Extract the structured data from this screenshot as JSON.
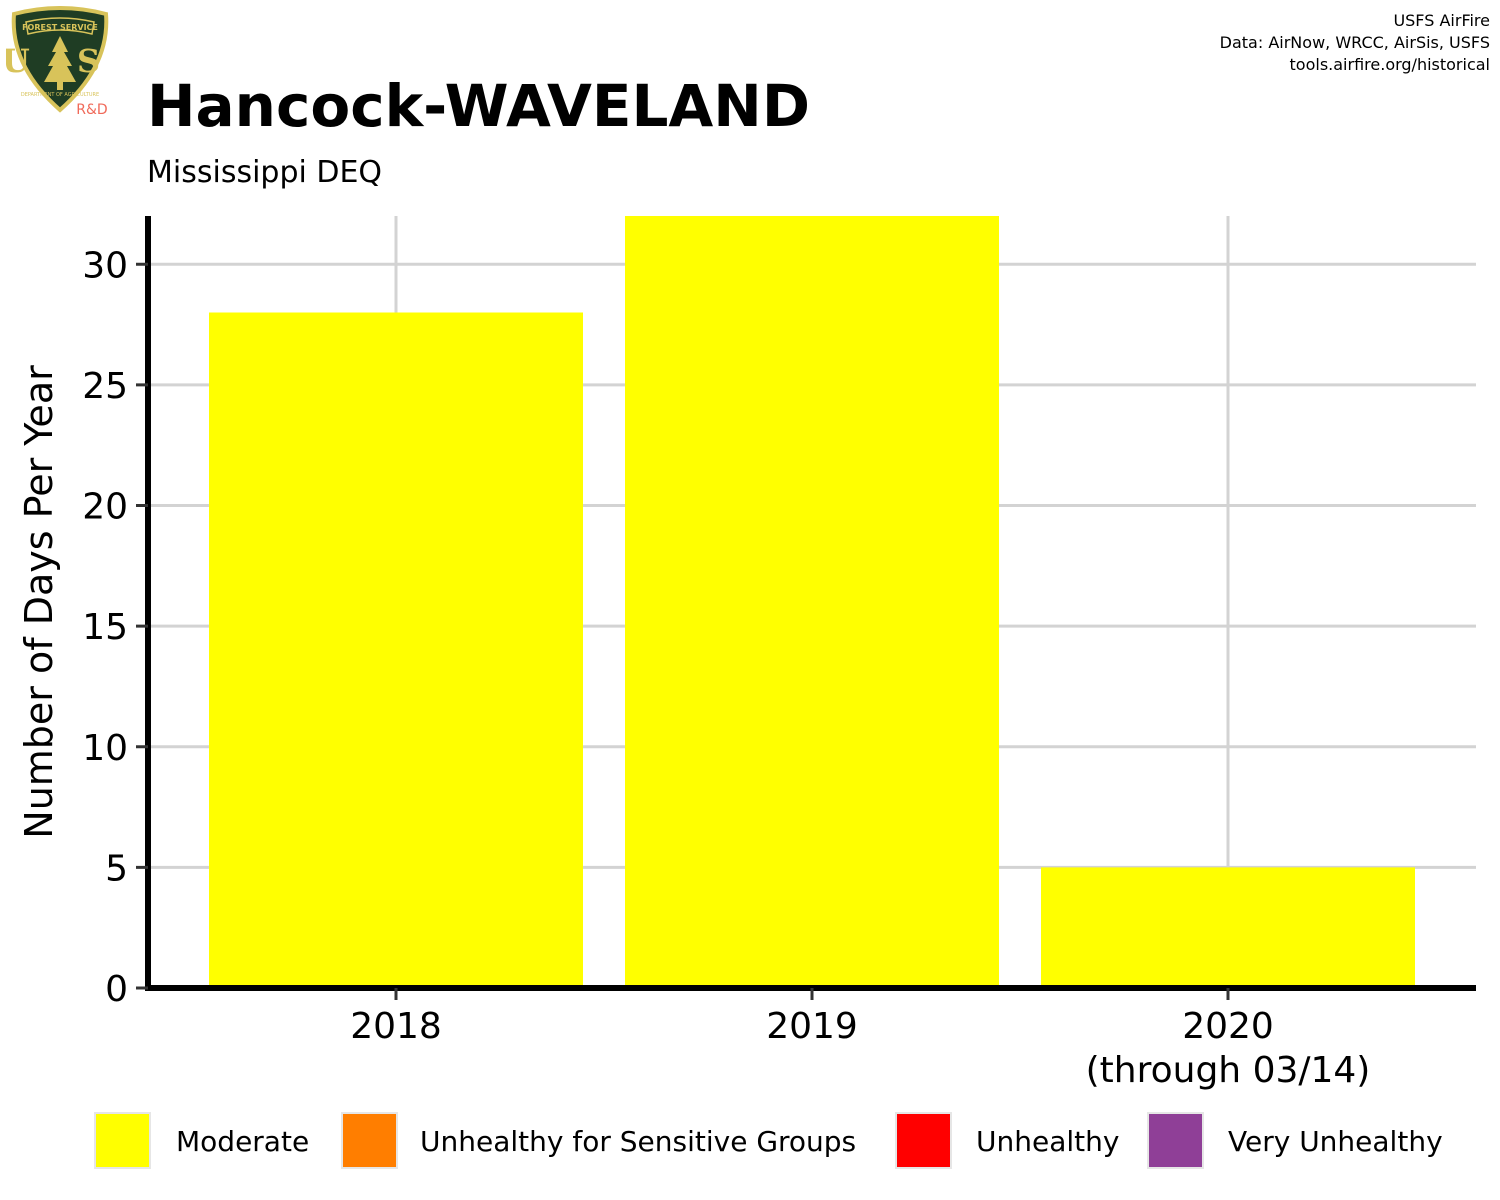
{
  "logo": {
    "top_text": "FOREST SERVICE",
    "bottom_text": "DEPARTMENT OF AGRICULTURE",
    "letters": "U S",
    "badge": "R&D",
    "shield_color": "#1f3d24",
    "trim_color": "#d8c35a",
    "badge_color": "#f06a5a"
  },
  "credits": {
    "line1": "USFS AirFire",
    "line2": "Data: AirNow, WRCC, AirSis, USFS",
    "line3": "tools.airfire.org/historical"
  },
  "chart_data": {
    "type": "bar",
    "title": "Hancock-WAVELAND",
    "subtitle": "Mississippi DEQ",
    "ylabel": "Number of Days Per Year",
    "xlabel": "",
    "categories": [
      {
        "line1": "2018",
        "line2": ""
      },
      {
        "line1": "2019",
        "line2": ""
      },
      {
        "line1": "2020",
        "line2": "(through 03/14)"
      }
    ],
    "series": [
      {
        "name": "Moderate",
        "color": "#ffff00",
        "values": [
          28,
          32,
          5
        ]
      },
      {
        "name": "Unhealthy for Sensitive Groups",
        "color": "#ff7e00",
        "values": [
          0,
          0,
          0
        ]
      },
      {
        "name": "Unhealthy",
        "color": "#ff0000",
        "values": [
          0,
          0,
          0
        ]
      },
      {
        "name": "Very Unhealthy",
        "color": "#8f3f97",
        "values": [
          0,
          0,
          0
        ]
      }
    ],
    "ylim": [
      0,
      32
    ],
    "yticks": [
      0,
      5,
      10,
      15,
      20,
      25,
      30
    ],
    "grid": true,
    "legend_position": "bottom"
  }
}
